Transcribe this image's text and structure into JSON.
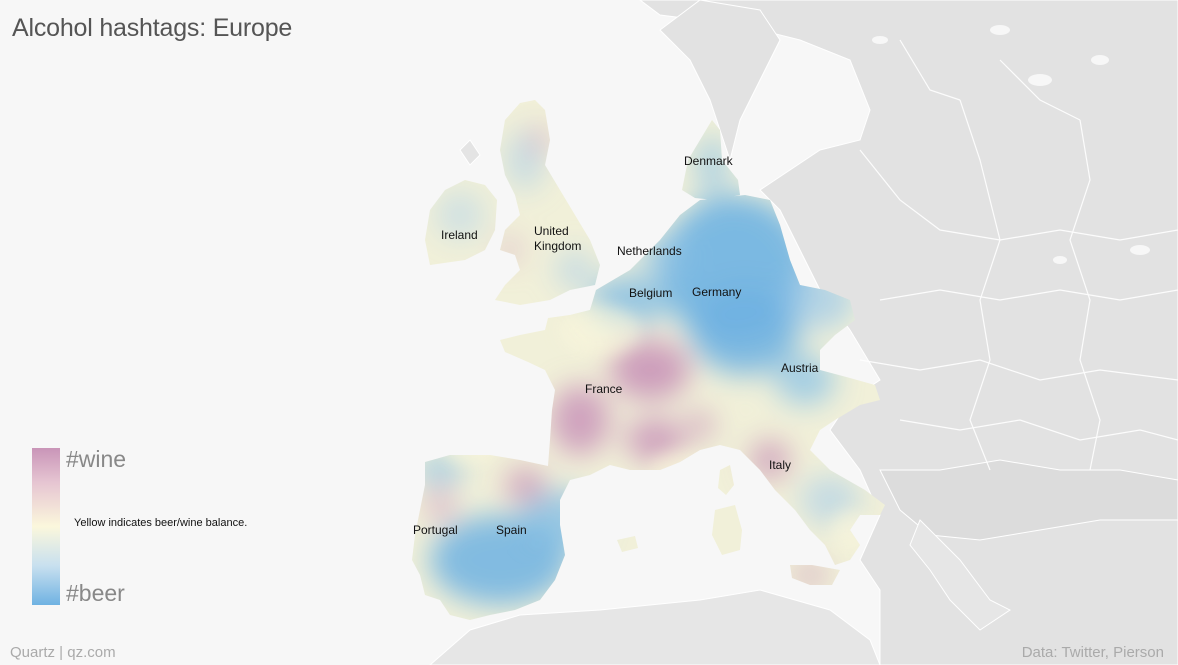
{
  "title": "Alcohol hashtags: Europe",
  "legend": {
    "top_label": "#wine",
    "bottom_label": "#beer",
    "note": "Yellow indicates beer/wine balance.",
    "colors": {
      "wine": "#c995b8",
      "balance": "#fbf7dc",
      "beer": "#6fb2e2"
    }
  },
  "countries": {
    "ireland": "Ireland",
    "uk_line1": "United",
    "uk_line2": "Kingdom",
    "denmark": "Denmark",
    "netherlands": "Netherlands",
    "belgium": "Belgium",
    "germany": "Germany",
    "france": "France",
    "austria": "Austria",
    "italy": "Italy",
    "portugal": "Portugal",
    "spain": "Spain"
  },
  "footer": {
    "source_brand": "Quartz | qz.com",
    "data_credit": "Data: Twitter, Pierson"
  }
}
